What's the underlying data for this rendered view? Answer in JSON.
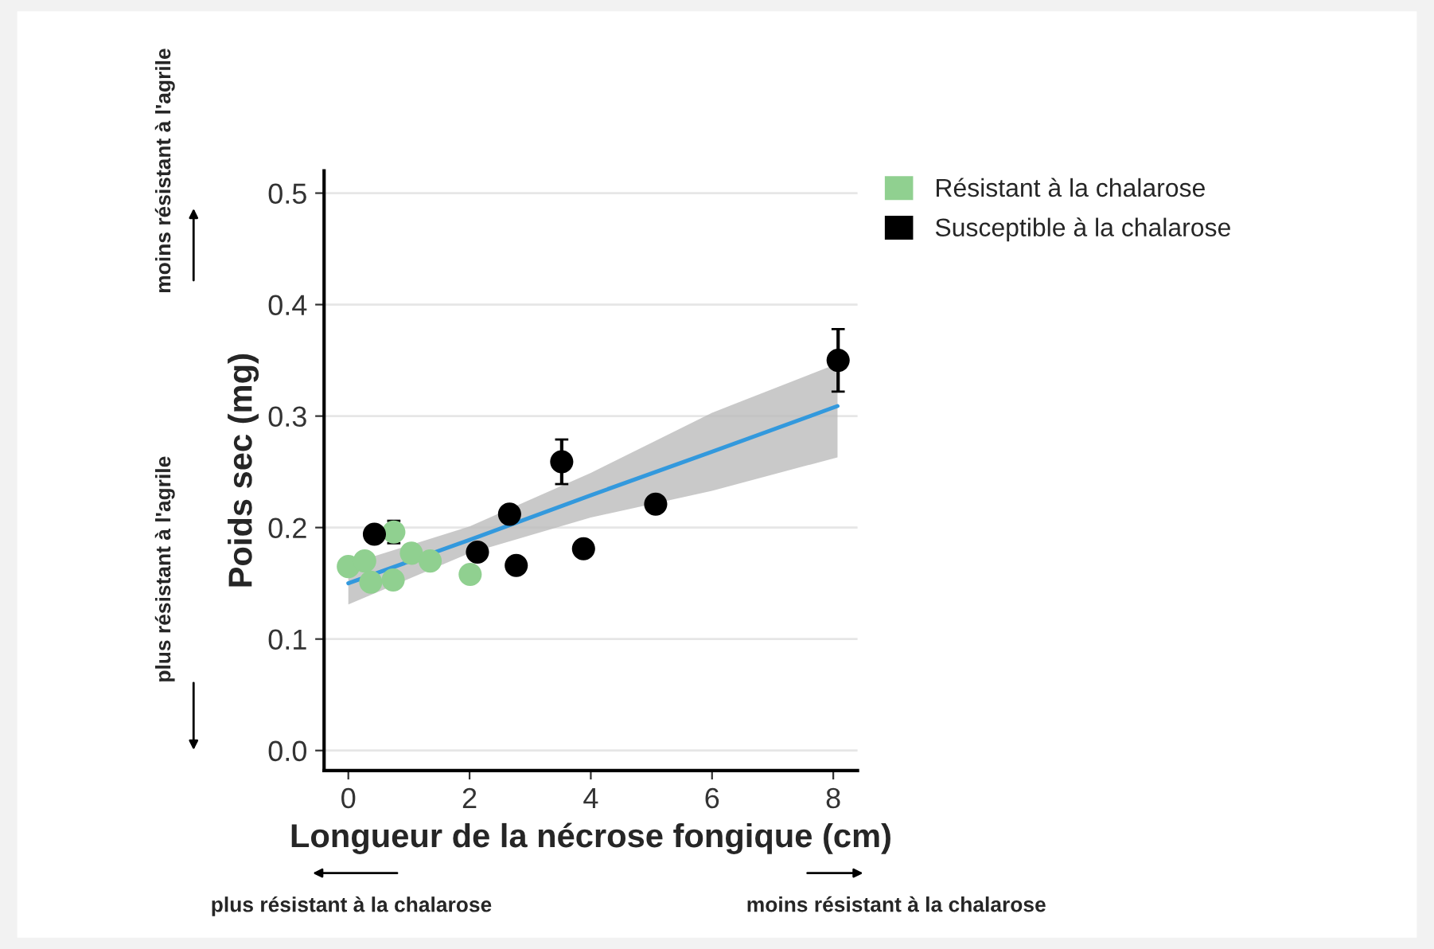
{
  "chart_data": {
    "type": "scatter",
    "xlabel": "Longueur de la nécrose fongique (cm)",
    "ylabel": "Poids sec (mg)",
    "series": [
      {
        "name": "Résistant à la chalarose",
        "color": "#90d090",
        "marker": "circle",
        "x": [
          0.0,
          0.27,
          0.37,
          0.74,
          0.75,
          1.04,
          1.35,
          2.01
        ],
        "values": [
          0.165,
          0.17,
          0.151,
          0.153,
          0.196,
          0.177,
          0.17,
          0.158
        ],
        "errors": [
          null,
          null,
          null,
          null,
          0.01,
          null,
          null,
          null
        ]
      },
      {
        "name": "Susceptible à la chalarose",
        "color": "#000000",
        "marker": "circle",
        "x": [
          0.43,
          2.13,
          2.66,
          2.77,
          3.52,
          3.88,
          5.07,
          8.08
        ],
        "values": [
          0.194,
          0.178,
          0.212,
          0.166,
          0.259,
          0.181,
          0.221,
          0.35
        ],
        "errors": [
          null,
          null,
          null,
          null,
          0.02,
          null,
          null,
          0.028
        ]
      },
      {
        "type": "line",
        "marker": "none",
        "color": "#3399dd",
        "x": [
          0,
          2,
          4,
          6,
          8.07
        ],
        "values": [
          0.15,
          0.189,
          0.229,
          0.268,
          0.309
        ],
        "lower": [
          0.131,
          0.177,
          0.209,
          0.233,
          0.263
        ],
        "upper": [
          0.167,
          0.201,
          0.249,
          0.303,
          0.347
        ]
      }
    ],
    "xlim": [
      -0.4,
      8.4
    ],
    "ylim": [
      -0.018,
      0.52
    ],
    "xticks": [
      0,
      2,
      4,
      6,
      8
    ],
    "yticks": [
      {
        "value": 0,
        "label": "0.0"
      },
      0.1,
      0.2,
      0.3,
      0.4,
      0.5
    ],
    "grid": "y",
    "legend": "top right",
    "annotations": [
      "moins résistant à l'agrile",
      "plus résistant à l'agrile",
      "plus résistant à la chalarose",
      "moins résistant à la chalarose"
    ]
  }
}
